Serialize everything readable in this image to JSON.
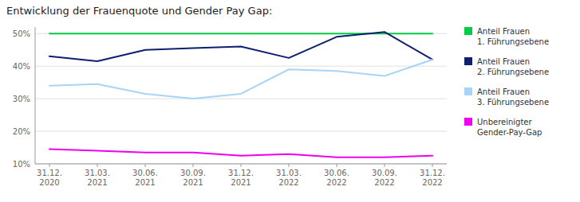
{
  "chart_data": {
    "type": "line",
    "title": "Entwicklung der Frauenquote und Gender Pay Gap:",
    "categories": [
      "31.12.\n2020",
      "31.03.\n2021",
      "30.06.\n2021",
      "30.09.\n2021",
      "31.12.\n2021",
      "31.03.\n2022",
      "30.06.\n2022",
      "30.09.\n2022",
      "31.12.\n2022"
    ],
    "series": [
      {
        "name": "Anteil Frauen\n1. Führungsebene",
        "color": "#00cc44",
        "values": [
          50,
          50,
          50,
          50,
          50,
          50,
          50,
          50,
          50
        ]
      },
      {
        "name": "Anteil Frauen\n2. Führungsebene",
        "color": "#0d1f6e",
        "values": [
          43,
          41.5,
          45,
          45.5,
          46,
          42.5,
          49,
          50.5,
          42
        ]
      },
      {
        "name": "Anteil Frauen\n3. Führungsebene",
        "color": "#a8d4f5",
        "values": [
          34,
          34.5,
          31.5,
          30,
          31.5,
          39,
          38.5,
          37,
          42
        ]
      },
      {
        "name": "Unbereinigter\nGender-Pay-Gap",
        "color": "#ee00ee",
        "values": [
          14.5,
          14,
          13.5,
          13.5,
          12.5,
          13,
          12,
          12,
          12.5
        ]
      }
    ],
    "ylim": [
      10,
      52
    ],
    "yticks": [
      {
        "value": 10,
        "label": "10%"
      },
      {
        "value": 20,
        "label": "20%"
      },
      {
        "value": 30,
        "label": "30%"
      },
      {
        "value": 40,
        "label": "40%"
      },
      {
        "value": 50,
        "label": "50%"
      }
    ],
    "grid": true,
    "legend": "right"
  }
}
